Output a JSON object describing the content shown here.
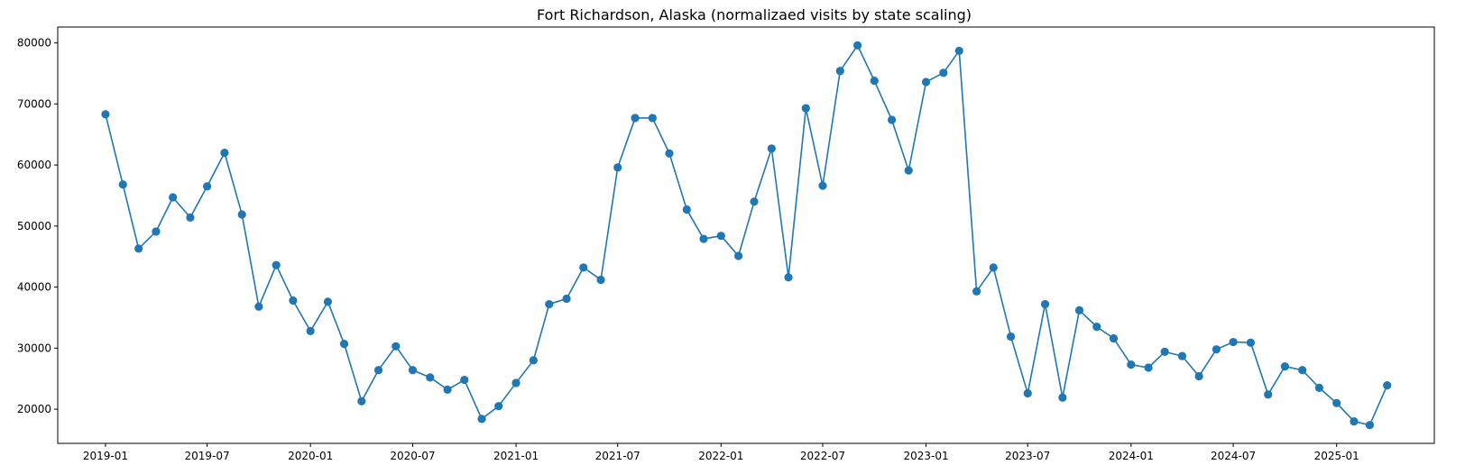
{
  "chart_data": {
    "type": "line",
    "title": "Fort Richardson, Alaska (normalizaed visits by state scaling)",
    "xlabel": "",
    "ylabel": "",
    "x_ticks": [
      "2019-01",
      "2019-07",
      "2020-01",
      "2020-07",
      "2021-01",
      "2021-07",
      "2022-01",
      "2022-07",
      "2023-01",
      "2023-07",
      "2024-01",
      "2024-07",
      "2025-01"
    ],
    "y_ticks": [
      20000,
      30000,
      40000,
      50000,
      60000,
      70000,
      80000
    ],
    "y_tick_labels": [
      "20000",
      "30000",
      "40000",
      "50000",
      "60000",
      "70000",
      "80000"
    ],
    "xlim": [
      "2018-10-08",
      "2025-06-24"
    ],
    "ylim": [
      14400,
      82600
    ],
    "grid": false,
    "series_color": "#1f77b4",
    "series": [
      {
        "x": [
          "2019-01",
          "2019-02",
          "2019-03",
          "2019-04",
          "2019-05",
          "2019-06",
          "2019-07",
          "2019-08",
          "2019-09",
          "2019-10",
          "2019-11",
          "2019-12",
          "2020-01",
          "2020-02",
          "2020-03",
          "2020-04",
          "2020-05",
          "2020-06",
          "2020-07",
          "2020-08",
          "2020-09",
          "2020-10",
          "2020-11",
          "2020-12",
          "2021-01",
          "2021-02",
          "2021-03",
          "2021-04",
          "2021-05",
          "2021-06",
          "2021-07",
          "2021-08",
          "2021-09",
          "2021-10",
          "2021-11",
          "2021-12",
          "2022-01",
          "2022-02",
          "2022-03",
          "2022-04",
          "2022-05",
          "2022-06",
          "2022-07",
          "2022-08",
          "2022-09",
          "2022-10",
          "2022-11",
          "2022-12",
          "2023-01",
          "2023-02",
          "2023-03",
          "2023-04",
          "2023-05",
          "2023-06",
          "2023-07",
          "2023-08",
          "2023-09",
          "2023-10",
          "2023-11",
          "2023-12",
          "2024-01",
          "2024-02",
          "2024-03",
          "2024-04",
          "2024-05",
          "2024-06",
          "2024-07",
          "2024-08",
          "2024-09",
          "2024-10",
          "2024-11",
          "2024-12",
          "2025-01",
          "2025-02",
          "2025-03",
          "2025-04"
        ],
        "y": [
          68300,
          56800,
          46300,
          49100,
          54700,
          51400,
          56500,
          62000,
          51900,
          36800,
          43600,
          37800,
          32800,
          37600,
          30700,
          21300,
          26400,
          30300,
          26400,
          25200,
          23200,
          24800,
          18400,
          20500,
          24300,
          28000,
          37200,
          38100,
          43200,
          41200,
          59600,
          67700,
          67700,
          61900,
          52700,
          47900,
          48400,
          45100,
          54000,
          62700,
          41600,
          69300,
          56600,
          75400,
          79600,
          73800,
          67400,
          59100,
          73600,
          75100,
          78700,
          39300,
          43200,
          31900,
          22600,
          37200,
          21900,
          36200,
          33500,
          31600,
          27300,
          26800,
          29400,
          28700,
          25400,
          29800,
          31000,
          30900,
          22400,
          27000,
          26400,
          23500,
          21000,
          18000,
          17400,
          23900
        ]
      }
    ]
  }
}
